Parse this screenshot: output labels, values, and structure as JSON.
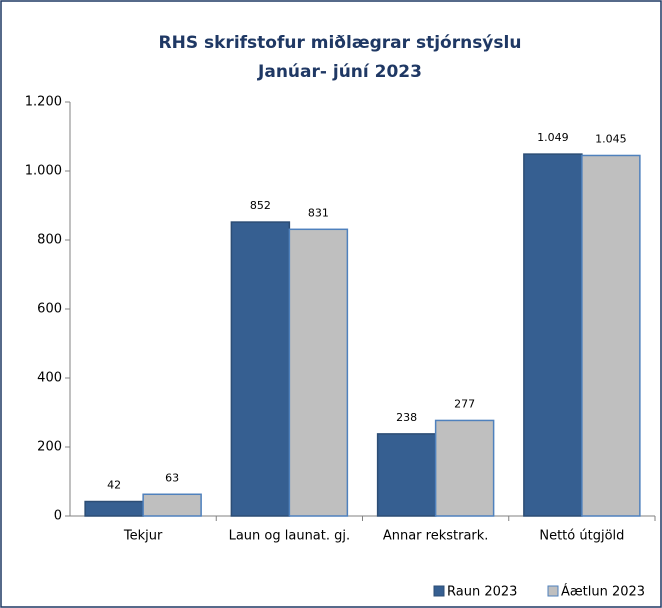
{
  "chart_data": {
    "type": "bar",
    "title": "RHS skrifstofur miðlægrar stjórnsýslu",
    "subtitle": "Janúar- júní 2023",
    "categories": [
      "Tekjur",
      "Laun og launat. gj.",
      "Annar rekstrark.",
      "Nettó útgjöld"
    ],
    "series": [
      {
        "name": "Raun 2023",
        "color": "#365f91",
        "values": [
          42,
          852,
          238,
          1049
        ],
        "value_labels": [
          "42",
          "852",
          "238",
          "1.049"
        ]
      },
      {
        "name": "Áætlun 2023",
        "color": "#bfbfbf",
        "values": [
          63,
          831,
          277,
          1045
        ],
        "value_labels": [
          "63",
          "831",
          "277",
          "1.045"
        ]
      }
    ],
    "ylim": [
      0,
      1200
    ],
    "yticks": [
      0,
      200,
      400,
      600,
      800,
      {
        "value": 1000,
        "label": "1.000"
      },
      {
        "value": 1200,
        "label": "1.200"
      }
    ],
    "grid": false,
    "legend": "bottom-right"
  }
}
